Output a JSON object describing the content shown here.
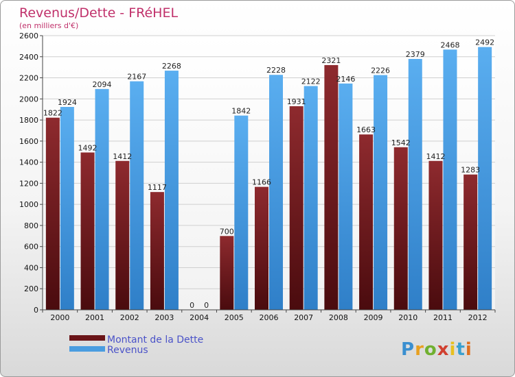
{
  "chart_data": {
    "type": "bar",
    "title": "Revenus/Dette - FRéHEL",
    "subtitle": "(en milliers d'€)",
    "categories": [
      "2000",
      "2001",
      "2002",
      "2003",
      "2004",
      "2005",
      "2006",
      "2007",
      "2008",
      "2009",
      "2010",
      "2011",
      "2012"
    ],
    "series": [
      {
        "name": "Montant de la Dette",
        "values": [
          1822,
          1492,
          1412,
          1117,
          0,
          700,
          1166,
          1931,
          2321,
          1663,
          1542,
          1412,
          1283
        ]
      },
      {
        "name": "Revenus",
        "values": [
          1924,
          2094,
          2167,
          2268,
          0,
          1842,
          2228,
          2122,
          2146,
          2226,
          2379,
          2468,
          2492
        ]
      }
    ],
    "yticks": [
      0,
      200,
      400,
      600,
      800,
      1000,
      1200,
      1400,
      1600,
      1800,
      2000,
      2200,
      2400,
      2600
    ],
    "ylim": [
      0,
      2600
    ],
    "grid": true,
    "legend_position": "bottom-left",
    "colors": {
      "dette": "#7a1f24",
      "revenus": "#4a9de0"
    }
  },
  "brand": {
    "logo_text": "Proxiti"
  }
}
